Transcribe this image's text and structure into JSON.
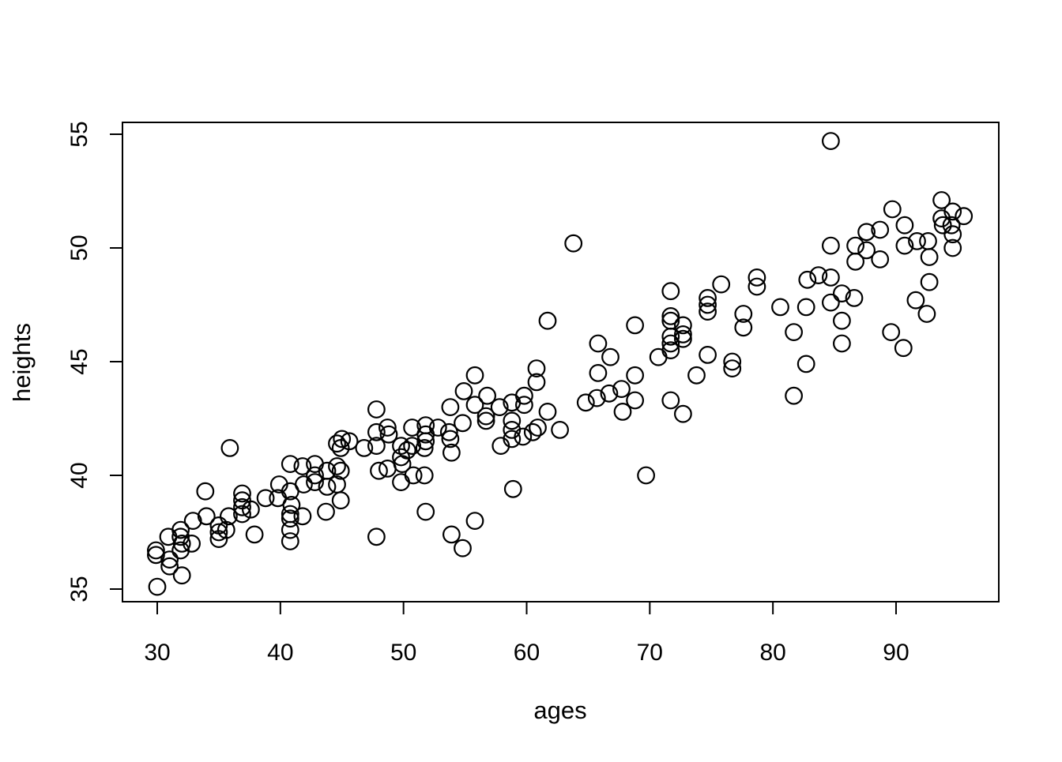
{
  "chart_data": {
    "type": "scatter",
    "title": "",
    "xlabel": "ages",
    "ylabel": "heights",
    "x_ticks": [
      30,
      40,
      50,
      60,
      70,
      80,
      90
    ],
    "y_ticks": [
      35,
      40,
      45,
      50,
      55
    ],
    "xlim": [
      27.2,
      98.3
    ],
    "ylim": [
      34.4,
      55.5
    ],
    "grid": false,
    "legend": null,
    "marker": "open-circle",
    "marker_color": "#000000",
    "background_color": "#ffffff",
    "points": [
      [
        29.9,
        36.7
      ],
      [
        29.9,
        36.5
      ],
      [
        30.0,
        35.1
      ],
      [
        30.9,
        37.3
      ],
      [
        31.0,
        36.3
      ],
      [
        31.0,
        36.0
      ],
      [
        31.9,
        37.6
      ],
      [
        31.9,
        37.3
      ],
      [
        32.0,
        37.0
      ],
      [
        31.9,
        36.7
      ],
      [
        32.0,
        35.6
      ],
      [
        32.9,
        38.0
      ],
      [
        32.8,
        37.0
      ],
      [
        33.9,
        39.3
      ],
      [
        34.0,
        38.2
      ],
      [
        35.0,
        37.8
      ],
      [
        35.0,
        37.5
      ],
      [
        35.0,
        37.2
      ],
      [
        35.6,
        37.6
      ],
      [
        35.8,
        38.2
      ],
      [
        35.9,
        41.2
      ],
      [
        36.9,
        39.2
      ],
      [
        36.9,
        38.9
      ],
      [
        36.9,
        38.6
      ],
      [
        36.9,
        38.3
      ],
      [
        37.6,
        38.5
      ],
      [
        37.9,
        37.4
      ],
      [
        38.8,
        39.0
      ],
      [
        39.8,
        39.0
      ],
      [
        39.9,
        39.6
      ],
      [
        40.8,
        40.5
      ],
      [
        40.8,
        39.3
      ],
      [
        40.9,
        38.7
      ],
      [
        40.8,
        38.3
      ],
      [
        40.8,
        38.1
      ],
      [
        40.8,
        37.6
      ],
      [
        40.8,
        37.1
      ],
      [
        41.8,
        40.4
      ],
      [
        41.9,
        39.6
      ],
      [
        41.8,
        38.2
      ],
      [
        42.8,
        40.5
      ],
      [
        42.8,
        40.0
      ],
      [
        42.8,
        39.7
      ],
      [
        43.8,
        40.2
      ],
      [
        43.8,
        39.5
      ],
      [
        43.7,
        38.4
      ],
      [
        44.6,
        41.4
      ],
      [
        44.9,
        41.2
      ],
      [
        44.6,
        40.4
      ],
      [
        44.9,
        40.2
      ],
      [
        44.6,
        39.6
      ],
      [
        44.9,
        38.9
      ],
      [
        45.0,
        41.6
      ],
      [
        45.6,
        41.5
      ],
      [
        46.8,
        41.2
      ],
      [
        47.8,
        42.9
      ],
      [
        47.8,
        41.9
      ],
      [
        47.8,
        41.3
      ],
      [
        48.0,
        40.2
      ],
      [
        47.8,
        37.3
      ],
      [
        48.7,
        42.1
      ],
      [
        48.8,
        41.8
      ],
      [
        48.7,
        40.3
      ],
      [
        49.8,
        41.3
      ],
      [
        50.3,
        41.1
      ],
      [
        49.8,
        40.8
      ],
      [
        49.9,
        40.5
      ],
      [
        49.8,
        39.7
      ],
      [
        50.7,
        42.1
      ],
      [
        50.7,
        41.3
      ],
      [
        50.8,
        40.0
      ],
      [
        51.8,
        42.2
      ],
      [
        51.8,
        41.8
      ],
      [
        51.8,
        41.5
      ],
      [
        51.7,
        41.2
      ],
      [
        51.7,
        40.0
      ],
      [
        51.8,
        38.4
      ],
      [
        52.8,
        42.1
      ],
      [
        53.7,
        41.9
      ],
      [
        53.8,
        41.6
      ],
      [
        53.9,
        41.0
      ],
      [
        53.8,
        43.0
      ],
      [
        53.9,
        37.4
      ],
      [
        54.8,
        42.3
      ],
      [
        54.9,
        43.7
      ],
      [
        54.8,
        36.8
      ],
      [
        55.8,
        44.4
      ],
      [
        55.8,
        43.1
      ],
      [
        55.8,
        38.0
      ],
      [
        56.7,
        42.6
      ],
      [
        56.7,
        42.4
      ],
      [
        56.8,
        43.5
      ],
      [
        57.8,
        43.0
      ],
      [
        57.9,
        41.3
      ],
      [
        58.8,
        43.2
      ],
      [
        58.8,
        42.4
      ],
      [
        58.8,
        42.0
      ],
      [
        58.8,
        41.6
      ],
      [
        58.9,
        39.4
      ],
      [
        59.8,
        43.5
      ],
      [
        59.8,
        43.1
      ],
      [
        59.7,
        41.7
      ],
      [
        60.5,
        41.9
      ],
      [
        60.9,
        42.1
      ],
      [
        60.8,
        44.7
      ],
      [
        60.8,
        44.1
      ],
      [
        61.7,
        42.8
      ],
      [
        61.7,
        46.8
      ],
      [
        62.7,
        42.0
      ],
      [
        63.8,
        50.2
      ],
      [
        64.8,
        43.2
      ],
      [
        65.7,
        43.4
      ],
      [
        65.8,
        44.5
      ],
      [
        65.8,
        45.8
      ],
      [
        66.7,
        43.6
      ],
      [
        66.8,
        45.2
      ],
      [
        67.7,
        43.8
      ],
      [
        67.8,
        42.8
      ],
      [
        68.8,
        44.4
      ],
      [
        68.8,
        43.3
      ],
      [
        68.8,
        46.6
      ],
      [
        69.7,
        40.0
      ],
      [
        70.7,
        45.2
      ],
      [
        71.7,
        48.1
      ],
      [
        71.7,
        47.0
      ],
      [
        71.7,
        46.8
      ],
      [
        71.7,
        46.1
      ],
      [
        71.7,
        45.8
      ],
      [
        71.7,
        45.5
      ],
      [
        71.7,
        43.3
      ],
      [
        72.7,
        46.6
      ],
      [
        72.7,
        46.2
      ],
      [
        72.7,
        46.0
      ],
      [
        72.7,
        42.7
      ],
      [
        73.8,
        44.4
      ],
      [
        74.7,
        47.8
      ],
      [
        74.7,
        47.5
      ],
      [
        74.7,
        47.2
      ],
      [
        74.7,
        45.3
      ],
      [
        75.8,
        48.4
      ],
      [
        76.7,
        45.0
      ],
      [
        76.7,
        44.7
      ],
      [
        77.6,
        47.1
      ],
      [
        77.6,
        46.5
      ],
      [
        78.7,
        48.7
      ],
      [
        78.7,
        48.3
      ],
      [
        80.6,
        47.4
      ],
      [
        81.7,
        46.3
      ],
      [
        81.7,
        43.5
      ],
      [
        82.7,
        47.4
      ],
      [
        82.7,
        44.9
      ],
      [
        82.8,
        48.6
      ],
      [
        83.7,
        48.8
      ],
      [
        84.7,
        48.7
      ],
      [
        84.7,
        50.1
      ],
      [
        84.7,
        47.6
      ],
      [
        84.7,
        54.7
      ],
      [
        85.6,
        48.0
      ],
      [
        85.6,
        46.8
      ],
      [
        85.6,
        45.8
      ],
      [
        86.7,
        50.1
      ],
      [
        86.7,
        49.4
      ],
      [
        86.6,
        47.8
      ],
      [
        87.6,
        50.7
      ],
      [
        87.6,
        49.9
      ],
      [
        88.7,
        50.8
      ],
      [
        88.7,
        49.5
      ],
      [
        89.6,
        46.3
      ],
      [
        89.7,
        51.7
      ],
      [
        90.6,
        45.6
      ],
      [
        90.7,
        51.0
      ],
      [
        90.7,
        50.1
      ],
      [
        91.7,
        50.3
      ],
      [
        91.6,
        47.7
      ],
      [
        92.5,
        47.1
      ],
      [
        92.6,
        50.3
      ],
      [
        92.7,
        49.6
      ],
      [
        92.7,
        48.5
      ],
      [
        93.7,
        52.1
      ],
      [
        93.7,
        51.3
      ],
      [
        93.8,
        51.0
      ],
      [
        94.6,
        51.6
      ],
      [
        94.5,
        51.0
      ],
      [
        94.6,
        50.6
      ],
      [
        94.6,
        50.0
      ],
      [
        95.5,
        51.4
      ]
    ]
  }
}
